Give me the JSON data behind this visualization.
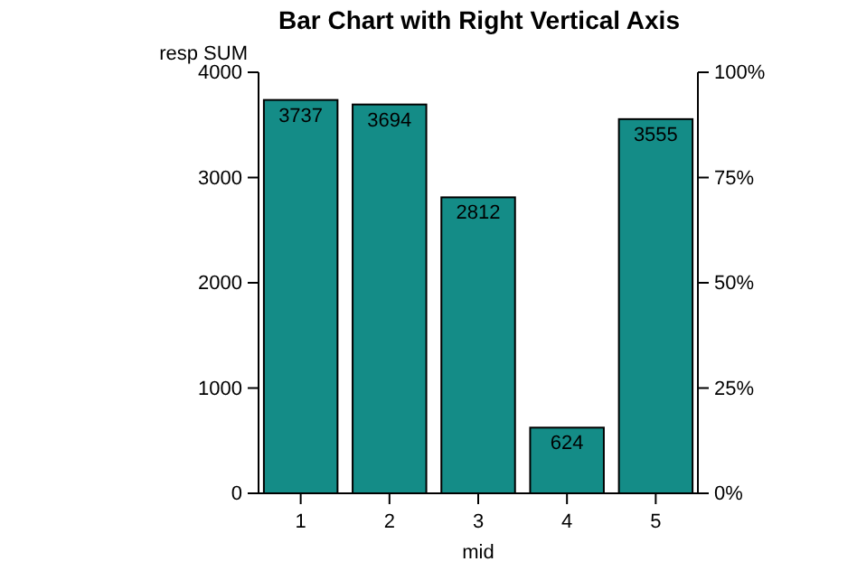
{
  "chart_data": {
    "type": "bar",
    "title": "Bar Chart with Right Vertical Axis",
    "xlabel": "mid",
    "ylabel": "resp SUM",
    "categories": [
      "1",
      "2",
      "3",
      "4",
      "5"
    ],
    "values": [
      3737,
      3694,
      2812,
      624,
      3555
    ],
    "color": "#148c87",
    "data_labels": true,
    "ylim": [
      0,
      4000
    ],
    "yticks": [
      0,
      1000,
      2000,
      3000,
      4000
    ],
    "y2lim": [
      0,
      100
    ],
    "y2ticks": [
      {
        "value": 0,
        "label": "0%"
      },
      {
        "value": 25,
        "label": "25%"
      },
      {
        "value": 50,
        "label": "50%"
      },
      {
        "value": 75,
        "label": "75%"
      },
      {
        "value": 100,
        "label": "100%"
      }
    ],
    "grid": false
  }
}
